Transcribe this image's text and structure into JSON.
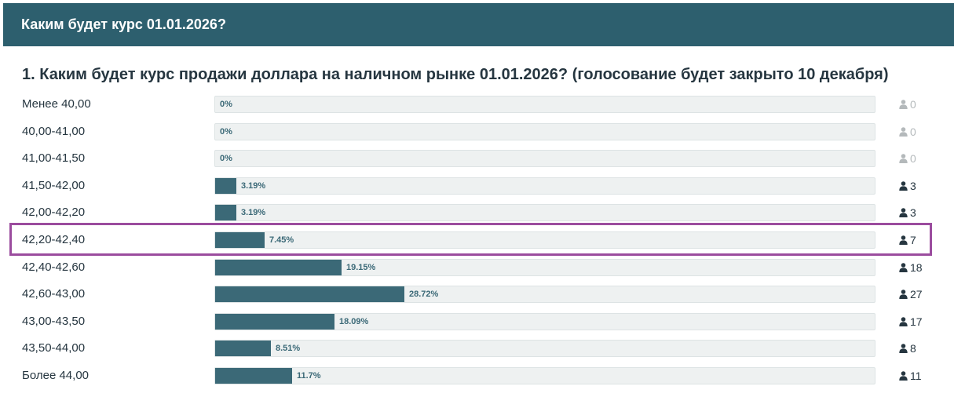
{
  "header": {
    "title": "Каким будет курс 01.01.2026?"
  },
  "question": {
    "title": "1. Каким будет курс продажи доллара на наличном рынке 01.01.2026? (голосование будет закрыто 10 декабря)"
  },
  "colors": {
    "header_bg": "#2d5f6e",
    "bar_fill": "#3b6977",
    "highlight": "#9b4c9e"
  },
  "icons": {
    "voter": "person-icon"
  },
  "options": [
    {
      "label": "Менее 40,00",
      "percent_text": "0%",
      "percent": 0,
      "count": "0"
    },
    {
      "label": "40,00-41,00",
      "percent_text": "0%",
      "percent": 0,
      "count": "0"
    },
    {
      "label": "41,00-41,50",
      "percent_text": "0%",
      "percent": 0,
      "count": "0"
    },
    {
      "label": "41,50-42,00",
      "percent_text": "3.19%",
      "percent": 3.19,
      "count": "3"
    },
    {
      "label": "42,00-42,20",
      "percent_text": "3.19%",
      "percent": 3.19,
      "count": "3"
    },
    {
      "label": "42,20-42,40",
      "percent_text": "7.45%",
      "percent": 7.45,
      "count": "7",
      "highlighted": true
    },
    {
      "label": "42,40-42,60",
      "percent_text": "19.15%",
      "percent": 19.15,
      "count": "18"
    },
    {
      "label": "42,60-43,00",
      "percent_text": "28.72%",
      "percent": 28.72,
      "count": "27"
    },
    {
      "label": "43,00-43,50",
      "percent_text": "18.09%",
      "percent": 18.09,
      "count": "17"
    },
    {
      "label": "43,50-44,00",
      "percent_text": "8.51%",
      "percent": 8.51,
      "count": "8"
    },
    {
      "label": "Более 44,00",
      "percent_text": "11.7%",
      "percent": 11.7,
      "count": "11"
    }
  ]
}
